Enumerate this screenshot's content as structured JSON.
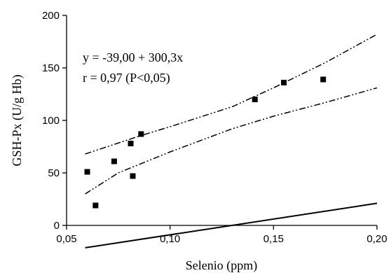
{
  "chart_data": {
    "type": "scatter",
    "xlabel": "Selenio (ppm)",
    "ylabel": "GSH-Px (U/g Hb)",
    "xlim": [
      0.05,
      0.2
    ],
    "ylim": [
      0,
      200
    ],
    "x_ticks": [
      0.05,
      0.1,
      0.15,
      0.2
    ],
    "x_tick_labels": [
      "0,05",
      "0,10",
      "0,15",
      "0,20"
    ],
    "y_ticks": [
      0,
      50,
      100,
      150,
      200
    ],
    "y_tick_labels": [
      "0",
      "50",
      "100",
      "150",
      "200"
    ],
    "grid": false,
    "points": [
      {
        "x": 0.06,
        "y": 51
      },
      {
        "x": 0.064,
        "y": 19
      },
      {
        "x": 0.073,
        "y": 61
      },
      {
        "x": 0.081,
        "y": 78
      },
      {
        "x": 0.082,
        "y": 47
      },
      {
        "x": 0.086,
        "y": 87
      },
      {
        "x": 0.141,
        "y": 120
      },
      {
        "x": 0.155,
        "y": 136
      },
      {
        "x": 0.174,
        "y": 139
      }
    ],
    "fit_line": {
      "intercept": -39.0,
      "slope": 300.3,
      "x_range": [
        0.059,
        0.2
      ]
    },
    "confidence_upper": [
      [
        0.059,
        68
      ],
      [
        0.085,
        85
      ],
      [
        0.1,
        94
      ],
      [
        0.13,
        113
      ],
      [
        0.15,
        131
      ],
      [
        0.175,
        155
      ],
      [
        0.2,
        182
      ]
    ],
    "confidence_lower": [
      [
        0.059,
        30
      ],
      [
        0.075,
        50
      ],
      [
        0.1,
        70
      ],
      [
        0.13,
        92
      ],
      [
        0.15,
        104
      ],
      [
        0.175,
        117
      ],
      [
        0.2,
        131
      ]
    ],
    "annotations": [
      "y = -39,00 + 300,3x",
      "r = 0,97 (P<0,05)"
    ]
  }
}
